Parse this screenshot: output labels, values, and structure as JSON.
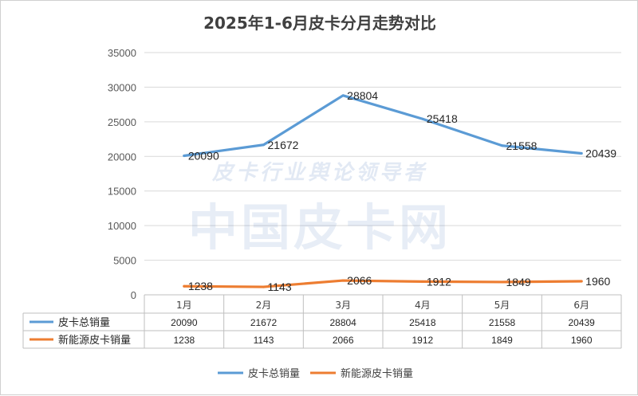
{
  "chart_data": {
    "type": "line",
    "title": "2025年1-6月皮卡分月走势对比",
    "categories": [
      "1月",
      "2月",
      "3月",
      "4月",
      "5月",
      "6月"
    ],
    "series": [
      {
        "name": "皮卡总销量",
        "color": "#5b9bd5",
        "values": [
          20090,
          21672,
          28804,
          25418,
          21558,
          20439
        ]
      },
      {
        "name": "新能源皮卡销量",
        "color": "#ed7d31",
        "values": [
          1238,
          1143,
          2066,
          1912,
          1849,
          1960
        ]
      }
    ],
    "ylim": [
      0,
      35000
    ],
    "yticks": [
      0,
      5000,
      10000,
      15000,
      20000,
      25000,
      30000,
      35000
    ],
    "grid": true,
    "data_table": true,
    "legend": "bottom"
  },
  "watermark": {
    "line1": "皮卡行业舆论领导者",
    "line2": "中国皮卡网"
  }
}
